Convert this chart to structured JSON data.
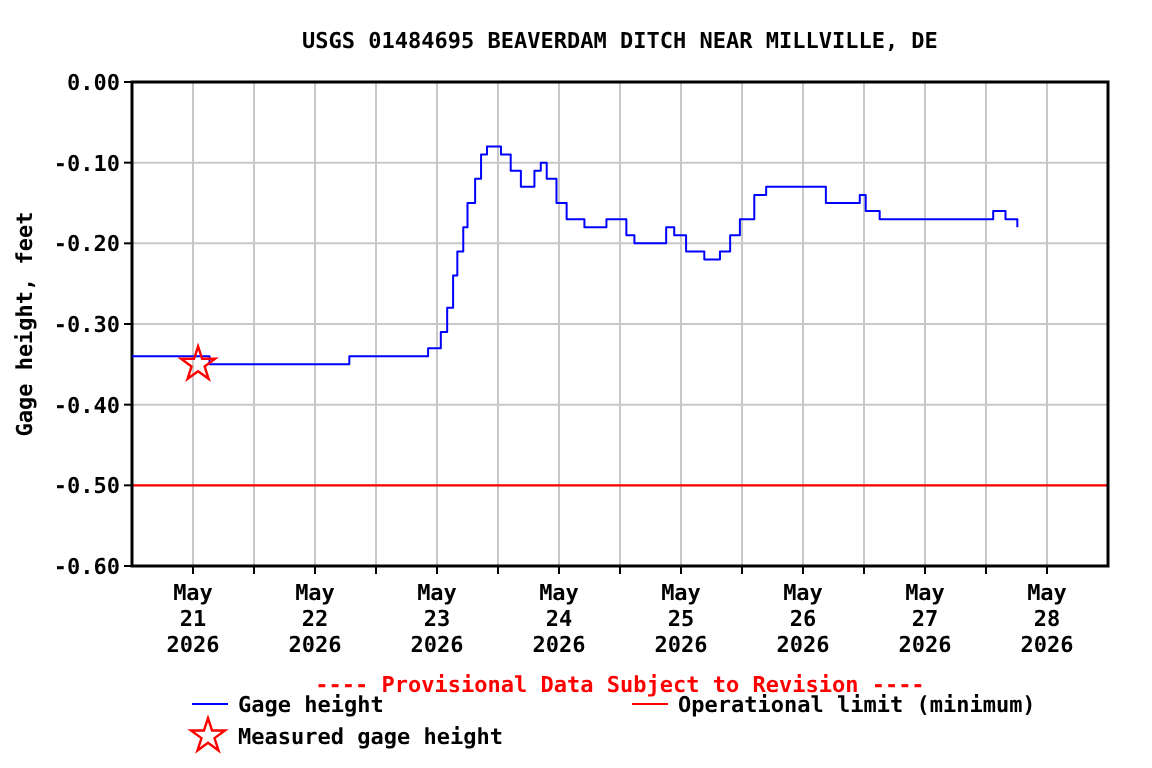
{
  "chart_data": {
    "type": "line",
    "title": "USGS 01484695 BEAVERDAM DITCH NEAR MILLVILLE, DE",
    "ylabel": "Gage height, feet",
    "annotations": [
      "---- Provisional Data Subject to Revision ----"
    ],
    "xlim": [
      "2026-05-21T00:00",
      "2026-05-29T00:00"
    ],
    "xticks": [
      {
        "value": "2026-05-21T12:00",
        "label": "May\n21\n2026"
      },
      {
        "value": "2026-05-22T00:00",
        "label": null
      },
      {
        "value": "2026-05-22T12:00",
        "label": "May\n22\n2026"
      },
      {
        "value": "2026-05-23T00:00",
        "label": null
      },
      {
        "value": "2026-05-23T12:00",
        "label": "May\n23\n2026"
      },
      {
        "value": "2026-05-24T00:00",
        "label": null
      },
      {
        "value": "2026-05-24T12:00",
        "label": "May\n24\n2026"
      },
      {
        "value": "2026-05-25T00:00",
        "label": null
      },
      {
        "value": "2026-05-25T12:00",
        "label": "May\n25\n2026"
      },
      {
        "value": "2026-05-26T00:00",
        "label": null
      },
      {
        "value": "2026-05-26T12:00",
        "label": "May\n26\n2026"
      },
      {
        "value": "2026-05-27T00:00",
        "label": null
      },
      {
        "value": "2026-05-27T12:00",
        "label": "May\n27\n2026"
      },
      {
        "value": "2026-05-28T00:00",
        "label": null
      },
      {
        "value": "2026-05-28T12:00",
        "label": "May\n28\n2026"
      }
    ],
    "ylim": [
      -0.6,
      0
    ],
    "yticks": [
      {
        "value": -0.6,
        "label": "-0.60"
      },
      {
        "value": -0.5,
        "label": "-0.50"
      },
      {
        "value": -0.4,
        "label": "-0.40"
      },
      {
        "value": -0.3,
        "label": "-0.30"
      },
      {
        "value": -0.2,
        "label": "-0.20"
      },
      {
        "value": -0.1,
        "label": "-0.10"
      },
      {
        "value": 0,
        "label": "0.00"
      }
    ],
    "grid": true,
    "legend": "bottom",
    "ref_lines": [
      {
        "axis": "y",
        "value": -0.5,
        "label": "Operational limit (minimum)",
        "color": "#ff0000"
      }
    ],
    "series": [
      {
        "name": "Gage height",
        "type": "step",
        "color": "#0000ff",
        "marker": "none",
        "x": [
          "2026-05-21T00:00",
          "2026-05-21T15:00",
          "2026-05-21T15:15",
          "2026-05-22T18:30",
          "2026-05-22T18:45",
          "2026-05-23T10:00",
          "2026-05-23T10:15",
          "2026-05-23T12:00",
          "2026-05-23T12:45",
          "2026-05-23T14:00",
          "2026-05-23T15:10",
          "2026-05-23T16:00",
          "2026-05-23T17:10",
          "2026-05-23T18:00",
          "2026-05-23T19:30",
          "2026-05-23T20:40",
          "2026-05-23T21:50",
          "2026-05-23T23:20",
          "2026-05-24T00:35",
          "2026-05-24T02:30",
          "2026-05-24T04:30",
          "2026-05-24T06:00",
          "2026-05-24T07:10",
          "2026-05-24T08:25",
          "2026-05-24T09:35",
          "2026-05-24T11:30",
          "2026-05-24T13:30",
          "2026-05-24T17:00",
          "2026-05-24T21:00",
          "2026-05-24T21:20",
          "2026-05-25T00:05",
          "2026-05-25T01:15",
          "2026-05-25T02:50",
          "2026-05-25T08:40",
          "2026-05-25T09:05",
          "2026-05-25T10:40",
          "2026-05-25T13:00",
          "2026-05-25T16:35",
          "2026-05-25T19:40",
          "2026-05-25T21:40",
          "2026-05-25T23:35",
          "2026-05-26T02:25",
          "2026-05-26T04:45",
          "2026-05-26T14:05",
          "2026-05-26T16:30",
          "2026-05-26T19:15",
          "2026-05-26T23:10",
          "2026-05-27T00:20",
          "2026-05-27T03:05",
          "2026-05-27T05:50",
          "2026-05-27T10:55",
          "2026-05-27T18:45",
          "2026-05-27T22:40",
          "2026-05-28T01:25",
          "2026-05-28T03:50",
          "2026-05-28T06:10"
        ],
        "values": [
          -0.34,
          -0.34,
          -0.35,
          -0.35,
          -0.34,
          -0.34,
          -0.33,
          -0.33,
          -0.31,
          -0.28,
          -0.24,
          -0.21,
          -0.18,
          -0.15,
          -0.12,
          -0.09,
          -0.08,
          -0.08,
          -0.09,
          -0.11,
          -0.13,
          -0.13,
          -0.11,
          -0.1,
          -0.12,
          -0.15,
          -0.17,
          -0.18,
          -0.18,
          -0.17,
          -0.17,
          -0.19,
          -0.2,
          -0.2,
          -0.18,
          -0.19,
          -0.21,
          -0.22,
          -0.21,
          -0.19,
          -0.17,
          -0.14,
          -0.13,
          -0.13,
          -0.15,
          -0.15,
          -0.14,
          -0.16,
          -0.17,
          -0.17,
          -0.17,
          -0.17,
          -0.17,
          -0.16,
          -0.17,
          -0.18
        ]
      },
      {
        "name": "Measured gage height",
        "type": "scatter",
        "color": "#ff0000",
        "marker": "star",
        "x": [
          "2026-05-21T13:00"
        ],
        "values": [
          -0.35
        ]
      }
    ]
  }
}
